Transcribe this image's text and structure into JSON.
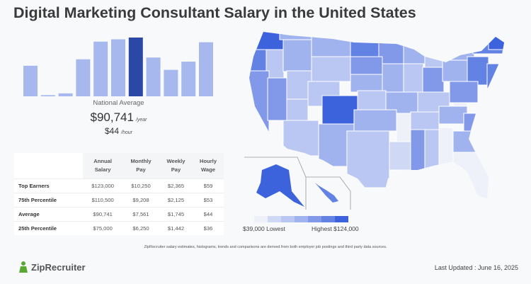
{
  "title": "Digital Marketing Consultant Salary in the United States",
  "chart_data": [
    {
      "type": "bar",
      "title": "",
      "categories": [
        "1",
        "2",
        "3",
        "4",
        "5",
        "6",
        "7",
        "8",
        "9",
        "10",
        "11"
      ],
      "values": [
        0.52,
        0.02,
        0.05,
        0.63,
        0.93,
        0.97,
        1.0,
        0.66,
        0.45,
        0.59,
        0.92
      ],
      "highlight_index": 6,
      "colors": {
        "bar": "#a7b8ee",
        "highlight": "#2b48a6"
      }
    },
    {
      "type": "table",
      "columns": [
        "",
        "Annual Salary",
        "Monthly Pay",
        "Weekly Pay",
        "Hourly Wage"
      ],
      "rows": [
        [
          "Top Earners",
          "$123,000",
          "$10,250",
          "$2,365",
          "$59"
        ],
        [
          "75th Percentile",
          "$110,500",
          "$9,208",
          "$2,125",
          "$53"
        ],
        [
          "Average",
          "$90,741",
          "$7,561",
          "$1,745",
          "$44"
        ],
        [
          "25th Percentile",
          "$75,000",
          "$6,250",
          "$1,442",
          "$36"
        ]
      ]
    }
  ],
  "summary": {
    "label": "National Average",
    "yearly": "$90,741",
    "yearly_unit": "/year",
    "hourly": "$44",
    "hourly_unit": "/hour"
  },
  "map": {
    "legend_colors": [
      "#eef0fa",
      "#cfd8f5",
      "#b9c7f2",
      "#a0b3ee",
      "#8199e8",
      "#6282e4",
      "#3d63dc"
    ],
    "lowest": "$39,000 Lowest",
    "highest": "Highest $124,000"
  },
  "disclaimer": "ZipRecruiter salary estimates, histograms, trends and comparisons are derived from both employer job postings and third party data sources.",
  "logo": "ZipRecruiter",
  "last_updated": "Last Updated : June 16, 2025"
}
